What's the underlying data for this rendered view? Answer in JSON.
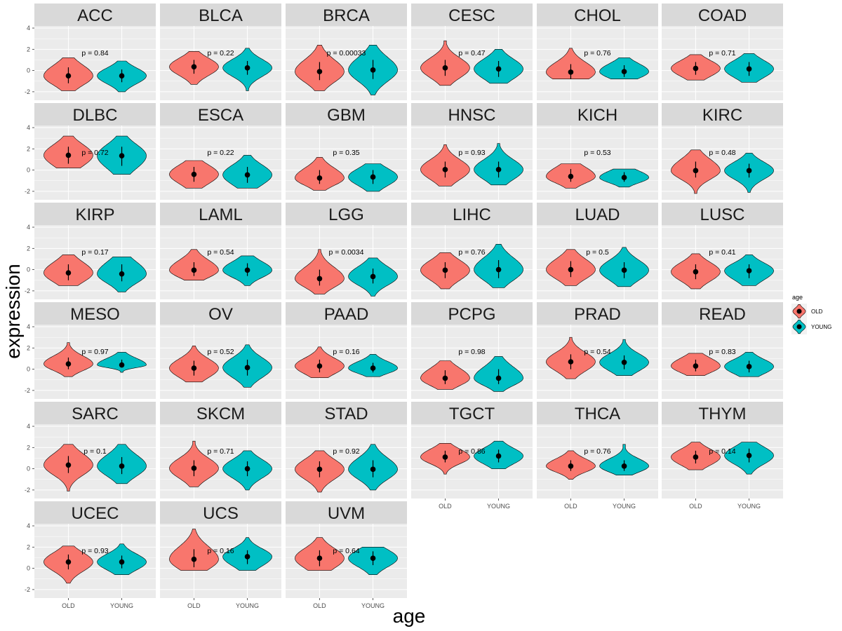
{
  "colors": {
    "old": "#F8766D",
    "young": "#00BFC4",
    "panel": "#EBEBEB",
    "strip": "#D9D9D9",
    "grid": "#FFFFFF"
  },
  "chart_data": {
    "type": "violin",
    "xlabel": "age",
    "ylabel": "expression",
    "categories": [
      "OLD",
      "YOUNG"
    ],
    "ylim": [
      -2.8,
      4.2
    ],
    "yticks": [
      -2,
      0,
      2,
      4
    ],
    "ytick_labels": [
      "-2",
      "0",
      "2",
      "4"
    ],
    "legend": {
      "title": "age",
      "items": [
        "OLD",
        "YOUNG"
      ],
      "position": "right"
    },
    "panels": [
      {
        "name": "ACC",
        "p": "p = 0.84",
        "old": {
          "median": -0.5,
          "q": [
            -1.2,
            0.3
          ],
          "range": [
            -1.9,
            1.2
          ]
        },
        "young": {
          "median": -0.5,
          "q": [
            -1.1,
            0.1
          ],
          "range": [
            -2.0,
            0.9
          ]
        }
      },
      {
        "name": "BLCA",
        "p": "p = 0.22",
        "old": {
          "median": 0.35,
          "q": [
            -0.3,
            1.0
          ],
          "range": [
            -1.3,
            1.8
          ]
        },
        "young": {
          "median": 0.25,
          "q": [
            -0.4,
            0.9
          ],
          "range": [
            -1.9,
            2.1
          ]
        }
      },
      {
        "name": "BRCA",
        "p": "p = 0.00033",
        "old": {
          "median": -0.1,
          "q": [
            -0.9,
            0.8
          ],
          "range": [
            -1.9,
            2.4
          ]
        },
        "young": {
          "median": 0.05,
          "q": [
            -0.8,
            1.0
          ],
          "range": [
            -2.3,
            2.4
          ]
        }
      },
      {
        "name": "CESC",
        "p": "p = 0.47",
        "old": {
          "median": 0.25,
          "q": [
            -0.5,
            1.0
          ],
          "range": [
            -1.4,
            2.8
          ]
        },
        "young": {
          "median": 0.15,
          "q": [
            -0.6,
            0.9
          ],
          "range": [
            -1.2,
            2.0
          ]
        }
      },
      {
        "name": "CHOL",
        "p": "p = 0.76",
        "old": {
          "median": -0.15,
          "q": [
            -0.8,
            0.6
          ],
          "range": [
            -0.8,
            2.1
          ]
        },
        "young": {
          "median": -0.1,
          "q": [
            -0.6,
            0.5
          ],
          "range": [
            -0.8,
            1.2
          ]
        }
      },
      {
        "name": "COAD",
        "p": "p = 0.71",
        "old": {
          "median": 0.2,
          "q": [
            -0.4,
            0.8
          ],
          "range": [
            -0.9,
            1.5
          ]
        },
        "young": {
          "median": 0.15,
          "q": [
            -0.5,
            0.8
          ],
          "range": [
            -1.1,
            1.6
          ]
        }
      },
      {
        "name": "DLBC",
        "p": "p = 0.72",
        "old": {
          "median": 1.4,
          "q": [
            0.6,
            2.2
          ],
          "range": [
            0.2,
            3.2
          ]
        },
        "young": {
          "median": 1.35,
          "q": [
            0.4,
            2.2
          ],
          "range": [
            -0.4,
            3.2
          ]
        }
      },
      {
        "name": "ESCA",
        "p": "p = 0.22",
        "old": {
          "median": -0.4,
          "q": [
            -1.1,
            0.3
          ],
          "range": [
            -1.7,
            0.9
          ]
        },
        "young": {
          "median": -0.45,
          "q": [
            -1.2,
            0.3
          ],
          "range": [
            -1.7,
            1.4
          ]
        }
      },
      {
        "name": "GBM",
        "p": "p = 0.35",
        "old": {
          "median": -0.75,
          "q": [
            -1.3,
            0.0
          ],
          "range": [
            -1.9,
            1.2
          ]
        },
        "young": {
          "median": -0.65,
          "q": [
            -1.3,
            0.0
          ],
          "range": [
            -2.0,
            0.6
          ]
        }
      },
      {
        "name": "HNSC",
        "p": "p = 0.93",
        "old": {
          "median": 0.05,
          "q": [
            -0.7,
            0.8
          ],
          "range": [
            -1.5,
            2.4
          ]
        },
        "young": {
          "median": 0.05,
          "q": [
            -0.7,
            0.8
          ],
          "range": [
            -1.4,
            2.5
          ]
        }
      },
      {
        "name": "KICH",
        "p": "p = 0.53",
        "old": {
          "median": -0.6,
          "q": [
            -1.1,
            0.1
          ],
          "range": [
            -1.7,
            0.6
          ]
        },
        "young": {
          "median": -0.7,
          "q": [
            -1.1,
            -0.2
          ],
          "range": [
            -1.6,
            0.1
          ]
        }
      },
      {
        "name": "KIRC",
        "p": "p = 0.48",
        "old": {
          "median": -0.05,
          "q": [
            -0.7,
            0.8
          ],
          "range": [
            -2.2,
            1.9
          ]
        },
        "young": {
          "median": -0.05,
          "q": [
            -0.7,
            0.6
          ],
          "range": [
            -2.1,
            1.6
          ]
        }
      },
      {
        "name": "KIRP",
        "p": "p = 0.17",
        "old": {
          "median": -0.3,
          "q": [
            -1.0,
            0.5
          ],
          "range": [
            -1.5,
            1.4
          ]
        },
        "young": {
          "median": -0.4,
          "q": [
            -1.1,
            0.5
          ],
          "range": [
            -2.1,
            1.2
          ]
        }
      },
      {
        "name": "LAML",
        "p": "p = 0.54",
        "old": {
          "median": -0.05,
          "q": [
            -0.6,
            0.7
          ],
          "range": [
            -1.0,
            1.9
          ]
        },
        "young": {
          "median": -0.05,
          "q": [
            -0.6,
            0.6
          ],
          "range": [
            -1.5,
            1.3
          ]
        }
      },
      {
        "name": "LGG",
        "p": "p = 0.0034",
        "old": {
          "median": -0.85,
          "q": [
            -1.5,
            0.0
          ],
          "range": [
            -2.3,
            1.9
          ]
        },
        "young": {
          "median": -0.65,
          "q": [
            -1.3,
            0.1
          ],
          "range": [
            -2.5,
            1.1
          ]
        }
      },
      {
        "name": "LIHC",
        "p": "p = 0.76",
        "old": {
          "median": -0.05,
          "q": [
            -0.8,
            0.7
          ],
          "range": [
            -1.8,
            1.6
          ]
        },
        "young": {
          "median": 0.0,
          "q": [
            -0.8,
            0.9
          ],
          "range": [
            -1.7,
            2.4
          ]
        }
      },
      {
        "name": "LUAD",
        "p": "p = 0.5",
        "old": {
          "median": 0.0,
          "q": [
            -0.7,
            0.8
          ],
          "range": [
            -1.5,
            1.9
          ]
        },
        "young": {
          "median": -0.05,
          "q": [
            -0.8,
            0.7
          ],
          "range": [
            -1.6,
            2.1
          ]
        }
      },
      {
        "name": "LUSC",
        "p": "p = 0.41",
        "old": {
          "median": -0.2,
          "q": [
            -0.9,
            0.5
          ],
          "range": [
            -1.8,
            1.5
          ]
        },
        "young": {
          "median": -0.1,
          "q": [
            -0.8,
            0.5
          ],
          "range": [
            -1.5,
            1.4
          ]
        }
      },
      {
        "name": "MESO",
        "p": "p = 0.97",
        "old": {
          "median": 0.5,
          "q": [
            0.0,
            1.1
          ],
          "range": [
            -0.7,
            2.5
          ]
        },
        "young": {
          "median": 0.4,
          "q": [
            0.2,
            0.9
          ],
          "range": [
            -0.3,
            1.6
          ]
        }
      },
      {
        "name": "OV",
        "p": "p = 0.52",
        "old": {
          "median": 0.1,
          "q": [
            -0.6,
            0.8
          ],
          "range": [
            -1.2,
            2.2
          ]
        },
        "young": {
          "median": 0.15,
          "q": [
            -0.6,
            0.9
          ],
          "range": [
            -1.7,
            2.3
          ]
        }
      },
      {
        "name": "PAAD",
        "p": "p = 0.16",
        "old": {
          "median": 0.3,
          "q": [
            -0.3,
            0.9
          ],
          "range": [
            -0.8,
            2.1
          ]
        },
        "young": {
          "median": 0.1,
          "q": [
            -0.3,
            0.6
          ],
          "range": [
            -0.7,
            1.4
          ]
        }
      },
      {
        "name": "PCPG",
        "p": "p = 0.98",
        "old": {
          "median": -0.85,
          "q": [
            -1.4,
            -0.1
          ],
          "range": [
            -1.9,
            0.8
          ]
        },
        "young": {
          "median": -0.85,
          "q": [
            -1.4,
            0.0
          ],
          "range": [
            -2.1,
            1.2
          ]
        }
      },
      {
        "name": "PRAD",
        "p": "p = 0.54",
        "old": {
          "median": 0.7,
          "q": [
            0.0,
            1.4
          ],
          "range": [
            -0.9,
            3.0
          ]
        },
        "young": {
          "median": 0.65,
          "q": [
            0.0,
            1.3
          ],
          "range": [
            -0.6,
            2.8
          ]
        }
      },
      {
        "name": "READ",
        "p": "p = 0.83",
        "old": {
          "median": 0.3,
          "q": [
            -0.2,
            0.9
          ],
          "range": [
            -0.6,
            1.5
          ]
        },
        "young": {
          "median": 0.25,
          "q": [
            -0.3,
            0.8
          ],
          "range": [
            -0.7,
            1.6
          ]
        }
      },
      {
        "name": "SARC",
        "p": "p = 0.1",
        "old": {
          "median": 0.35,
          "q": [
            -0.4,
            1.2
          ],
          "range": [
            -2.1,
            2.3
          ]
        },
        "young": {
          "median": 0.25,
          "q": [
            -0.5,
            1.1
          ],
          "range": [
            -1.4,
            2.3
          ]
        }
      },
      {
        "name": "SKCM",
        "p": "p = 0.71",
        "old": {
          "median": 0.05,
          "q": [
            -0.7,
            0.8
          ],
          "range": [
            -1.7,
            2.6
          ]
        },
        "young": {
          "median": 0.0,
          "q": [
            -0.7,
            0.7
          ],
          "range": [
            -2.0,
            1.7
          ]
        }
      },
      {
        "name": "STAD",
        "p": "p = 0.92",
        "old": {
          "median": -0.05,
          "q": [
            -0.8,
            0.7
          ],
          "range": [
            -2.2,
            1.7
          ]
        },
        "young": {
          "median": -0.05,
          "q": [
            -0.8,
            0.8
          ],
          "range": [
            -2.0,
            2.3
          ]
        }
      },
      {
        "name": "TGCT",
        "p": "p = 0.86",
        "old": {
          "median": 1.1,
          "q": [
            0.6,
            1.7
          ],
          "range": [
            -0.5,
            2.4
          ]
        },
        "young": {
          "median": 1.2,
          "q": [
            0.6,
            1.8
          ],
          "range": [
            0.0,
            2.6
          ]
        }
      },
      {
        "name": "THCA",
        "p": "p = 0.76",
        "old": {
          "median": 0.25,
          "q": [
            -0.2,
            0.8
          ],
          "range": [
            -1.0,
            1.7
          ]
        },
        "young": {
          "median": 0.25,
          "q": [
            -0.2,
            0.8
          ],
          "range": [
            -0.6,
            2.3
          ]
        }
      },
      {
        "name": "THYM",
        "p": "p = 0.14",
        "old": {
          "median": 1.1,
          "q": [
            0.5,
            1.7
          ],
          "range": [
            -0.1,
            2.5
          ]
        },
        "young": {
          "median": 1.25,
          "q": [
            0.6,
            1.9
          ],
          "range": [
            -0.5,
            2.5
          ]
        }
      },
      {
        "name": "UCEC",
        "p": "p = 0.93",
        "old": {
          "median": 0.6,
          "q": [
            -0.1,
            1.3
          ],
          "range": [
            -1.4,
            2.1
          ]
        },
        "young": {
          "median": 0.6,
          "q": [
            0.0,
            1.2
          ],
          "range": [
            -0.6,
            2.3
          ]
        }
      },
      {
        "name": "UCS",
        "p": "p = 0.16",
        "old": {
          "median": 0.85,
          "q": [
            0.1,
            1.8
          ],
          "range": [
            -0.2,
            3.7
          ]
        },
        "young": {
          "median": 1.1,
          "q": [
            0.4,
            1.7
          ],
          "range": [
            -0.2,
            2.9
          ]
        }
      },
      {
        "name": "UVM",
        "p": "p = 0.64",
        "old": {
          "median": 0.95,
          "q": [
            0.2,
            1.7
          ],
          "range": [
            -0.2,
            2.9
          ]
        },
        "young": {
          "median": 0.95,
          "q": [
            0.3,
            1.6
          ],
          "range": [
            -0.6,
            2.0
          ]
        }
      }
    ]
  }
}
